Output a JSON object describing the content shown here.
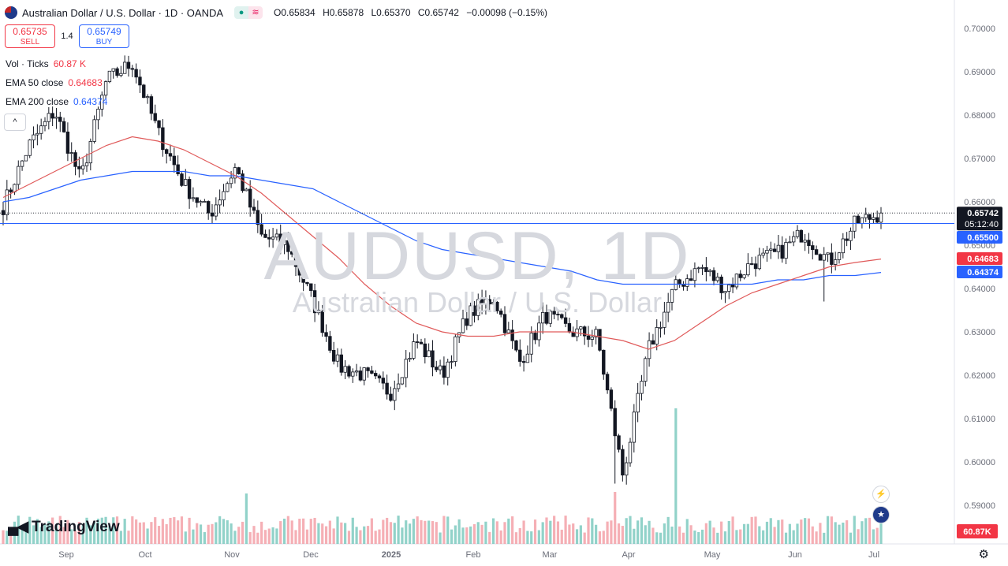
{
  "header": {
    "symbol_title": "Australian Dollar / U.S. Dollar · 1D · OANDA",
    "open": "O0.65834",
    "high": "H0.65878",
    "low": "L0.65370",
    "close": "C0.65742",
    "change": "−0.00098 (−0.15%)"
  },
  "trade": {
    "sell_price": "0.65735",
    "sell_label": "SELL",
    "spread": "1.4",
    "buy_price": "0.65749",
    "buy_label": "BUY"
  },
  "indicators": {
    "vol_label": "Vol · Ticks",
    "vol_value": "60.87 K",
    "ema50_label": "EMA 50 close",
    "ema50_value": "0.64683",
    "ema200_label": "EMA 200 close",
    "ema200_value": "0.64374"
  },
  "watermark": {
    "symbol": "AUDUSD, 1D",
    "name": "Australian Dollar / U.S. Dollar"
  },
  "logo": "TradingView",
  "colors": {
    "up": "#131722",
    "down": "#131722",
    "ema50": "#e05a5a",
    "ema200": "#2962ff",
    "vol_up": "#7ecac0",
    "vol_down": "#f3a1a8",
    "price_tag": "#131722",
    "support_tag": "#2962ff",
    "ema50_tag": "#f23645",
    "ema200_tag": "#2962ff",
    "vol_tag": "#f23645"
  },
  "chart_data": {
    "type": "candlestick",
    "y_axis": {
      "min": 0.585,
      "max": 0.7,
      "ticks": [
        "0.70000",
        "0.69000",
        "0.68000",
        "0.67000",
        "0.66000",
        "0.65000",
        "0.64000",
        "0.63000",
        "0.62000",
        "0.61000",
        "0.60000",
        "0.59000"
      ]
    },
    "x_axis_labels": [
      "Sep",
      "Oct",
      "Nov",
      "Dec",
      "2025",
      "Feb",
      "Mar",
      "Apr",
      "May",
      "Jun",
      "Jul"
    ],
    "price_tags": [
      {
        "value": 0.65742,
        "text": "0.65742",
        "sub": "05:12:40",
        "role": "last"
      },
      {
        "value": 0.655,
        "text": "0.65500",
        "role": "support"
      },
      {
        "value": 0.64683,
        "text": "0.64683",
        "role": "ema50"
      },
      {
        "value": 0.64374,
        "text": "0.64374",
        "role": "ema200"
      }
    ],
    "volume_tag": "60.87K",
    "horizontal_line": 0.655,
    "anchors": [
      {
        "m": "Aug",
        "p": 0.659
      },
      {
        "m": "Sep",
        "p": 0.673
      },
      {
        "m": "Sep+",
        "p": 0.681
      },
      {
        "m": "Sep-mid",
        "p": 0.665
      },
      {
        "m": "Sep-end",
        "p": 0.688
      },
      {
        "m": "Oct",
        "p": 0.692
      },
      {
        "m": "Oct-mid",
        "p": 0.676
      },
      {
        "m": "Oct-end",
        "p": 0.664
      },
      {
        "m": "Nov-a",
        "p": 0.657
      },
      {
        "m": "Nov",
        "p": 0.668
      },
      {
        "m": "Nov-mid",
        "p": 0.652
      },
      {
        "m": "Dec",
        "p": 0.65
      },
      {
        "m": "Dec-mid",
        "p": 0.637
      },
      {
        "m": "Dec-end",
        "p": 0.622
      },
      {
        "m": "2025",
        "p": 0.62
      },
      {
        "m": "Jan-mid",
        "p": 0.616
      },
      {
        "m": "Jan-end",
        "p": 0.628
      },
      {
        "m": "Feb",
        "p": 0.62
      },
      {
        "m": "Feb-mid",
        "p": 0.634
      },
      {
        "m": "Feb-end",
        "p": 0.638
      },
      {
        "m": "Mar",
        "p": 0.623
      },
      {
        "m": "Mar-mid",
        "p": 0.634
      },
      {
        "m": "Mar-end",
        "p": 0.63
      },
      {
        "m": "Apr",
        "p": 0.629
      },
      {
        "m": "Apr-low",
        "p": 0.597
      },
      {
        "m": "Apr-mid",
        "p": 0.626
      },
      {
        "m": "Apr-end",
        "p": 0.64
      },
      {
        "m": "May",
        "p": 0.645
      },
      {
        "m": "May-mid",
        "p": 0.64
      },
      {
        "m": "May-end",
        "p": 0.646
      },
      {
        "m": "Jun",
        "p": 0.648
      },
      {
        "m": "Jun-mid",
        "p": 0.653
      },
      {
        "m": "Jun-end",
        "p": 0.646
      },
      {
        "m": "Jun-late",
        "p": 0.655
      },
      {
        "m": "Jul",
        "p": 0.6574
      }
    ],
    "ema50": [
      0.661,
      0.664,
      0.667,
      0.67,
      0.673,
      0.675,
      0.674,
      0.672,
      0.669,
      0.666,
      0.662,
      0.657,
      0.652,
      0.647,
      0.641,
      0.636,
      0.632,
      0.63,
      0.629,
      0.629,
      0.63,
      0.63,
      0.63,
      0.629,
      0.628,
      0.626,
      0.628,
      0.632,
      0.636,
      0.639,
      0.641,
      0.643,
      0.645,
      0.646,
      0.6468
    ],
    "ema200": [
      0.66,
      0.661,
      0.663,
      0.665,
      0.666,
      0.667,
      0.667,
      0.667,
      0.666,
      0.666,
      0.665,
      0.664,
      0.663,
      0.66,
      0.657,
      0.654,
      0.651,
      0.649,
      0.648,
      0.647,
      0.646,
      0.645,
      0.644,
      0.642,
      0.641,
      0.641,
      0.641,
      0.641,
      0.641,
      0.641,
      0.642,
      0.642,
      0.643,
      0.643,
      0.6437
    ]
  }
}
